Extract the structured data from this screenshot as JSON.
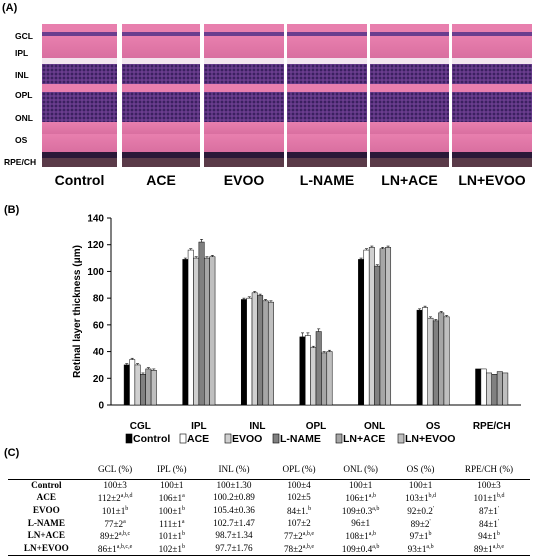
{
  "panel_a": {
    "label": "(A)",
    "layers": [
      "GCL",
      "IPL",
      "INL",
      "OPL",
      "ONL",
      "OS",
      "RPE/CH"
    ],
    "groups": [
      "Control",
      "ACE",
      "EVOO",
      "L-NAME",
      "LN+ACE",
      "LN+EVOO"
    ],
    "colors": {
      "pink": "#e87fae",
      "purple": "#6a3d8e",
      "dark": "#2a1838",
      "white": "#f3e6ef"
    }
  },
  "panel_b": {
    "label": "(B)"
  },
  "panel_c": {
    "label": "(C)"
  },
  "chart_data": {
    "type": "bar",
    "ylabel": "Retinal layer thickness (μm)",
    "ylim": [
      0,
      140
    ],
    "yticks": [
      0,
      20,
      40,
      60,
      80,
      100,
      120,
      140
    ],
    "categories": [
      "CGL",
      "IPL",
      "INL",
      "OPL",
      "ONL",
      "OS",
      "RPE/CH"
    ],
    "series": [
      {
        "name": "Control",
        "color": "#000000",
        "values": [
          30,
          109,
          79,
          51,
          109,
          71,
          27
        ],
        "errors": [
          1,
          1,
          1,
          3,
          1,
          1,
          0.5
        ]
      },
      {
        "name": "ACE",
        "color": "#ffffff",
        "values": [
          34,
          116,
          80,
          52,
          116,
          73,
          27
        ],
        "errors": [
          1,
          1,
          1,
          2,
          1,
          1,
          0.5
        ]
      },
      {
        "name": "EVOO",
        "color": "#d0d0d0",
        "values": [
          30,
          110,
          84,
          43,
          118,
          65,
          24
        ],
        "errors": [
          1,
          1,
          1,
          1,
          1,
          1,
          0.5
        ]
      },
      {
        "name": "L-NAME",
        "color": "#808080",
        "values": [
          23,
          122,
          82,
          55,
          104,
          63,
          23
        ],
        "errors": [
          1,
          2,
          1,
          2,
          1,
          1,
          0.5
        ]
      },
      {
        "name": "LN+ACE",
        "color": "#a6a6a6",
        "values": [
          27,
          110,
          78,
          39,
          117,
          69,
          25
        ],
        "errors": [
          1,
          1,
          1,
          1,
          1,
          1,
          0.5
        ]
      },
      {
        "name": "LN+EVOO",
        "color": "#bfbfbf",
        "values": [
          26,
          111,
          77,
          40,
          118,
          66,
          24
        ],
        "errors": [
          1,
          1,
          1,
          1,
          1,
          1,
          0.5
        ]
      }
    ],
    "grid": false,
    "legend": "bottom"
  },
  "table": {
    "headers": [
      "",
      "GCL (%)",
      "IPL (%)",
      "INL (%)",
      "OPL (%)",
      "ONL (%)",
      "OS (%)",
      "RPE/CH (%)"
    ],
    "rows": [
      {
        "group": "Control",
        "cells": [
          [
            "100±3",
            ""
          ],
          [
            "100±1",
            ""
          ],
          [
            "100±1.30",
            ""
          ],
          [
            "100±4",
            ""
          ],
          [
            "100±1",
            ""
          ],
          [
            "100±1",
            ""
          ],
          [
            "100±3",
            ""
          ]
        ]
      },
      {
        "group": "ACE",
        "cells": [
          [
            "112±2",
            "a,b,d"
          ],
          [
            "106±1",
            "a"
          ],
          [
            "100.2±0.89",
            ""
          ],
          [
            "102±5",
            ""
          ],
          [
            "106±1",
            "a,b"
          ],
          [
            "103±1",
            "b,d"
          ],
          [
            "101±1",
            "b,d"
          ]
        ]
      },
      {
        "group": "EVOO",
        "cells": [
          [
            "101±1",
            "b"
          ],
          [
            "100±1",
            "b"
          ],
          [
            "105.4±0.36",
            ""
          ],
          [
            "84±1.",
            "b"
          ],
          [
            "109±0.3",
            "a,b"
          ],
          [
            "92±0.2",
            "'"
          ],
          [
            "87±1",
            "'"
          ]
        ]
      },
      {
        "group": "L-NAME",
        "cells": [
          [
            "77±2",
            "a"
          ],
          [
            "111±1",
            "a"
          ],
          [
            "102.7±1.47",
            ""
          ],
          [
            "107±2",
            ""
          ],
          [
            "96±1",
            ""
          ],
          [
            "89±2",
            "'"
          ],
          [
            "84±1",
            "'"
          ]
        ]
      },
      {
        "group": "LN+ACE",
        "cells": [
          [
            "89±2",
            "a,b,c"
          ],
          [
            "101±1",
            "b"
          ],
          [
            "98.7±1.34",
            ""
          ],
          [
            "77±2",
            "a,b,e"
          ],
          [
            "108±1",
            "a,b"
          ],
          [
            "97±1",
            "b"
          ],
          [
            "94±1",
            "b"
          ]
        ]
      },
      {
        "group": "LN+EVOO",
        "cells": [
          [
            "86±1",
            "a,b,c,e"
          ],
          [
            "102±1",
            "b"
          ],
          [
            "97.7±1.76",
            ""
          ],
          [
            "78±2",
            "a,b,e"
          ],
          [
            "109±0.4",
            "a,b"
          ],
          [
            "93±1",
            "a,b"
          ],
          [
            "89±1",
            "a,b,e"
          ]
        ]
      }
    ]
  }
}
